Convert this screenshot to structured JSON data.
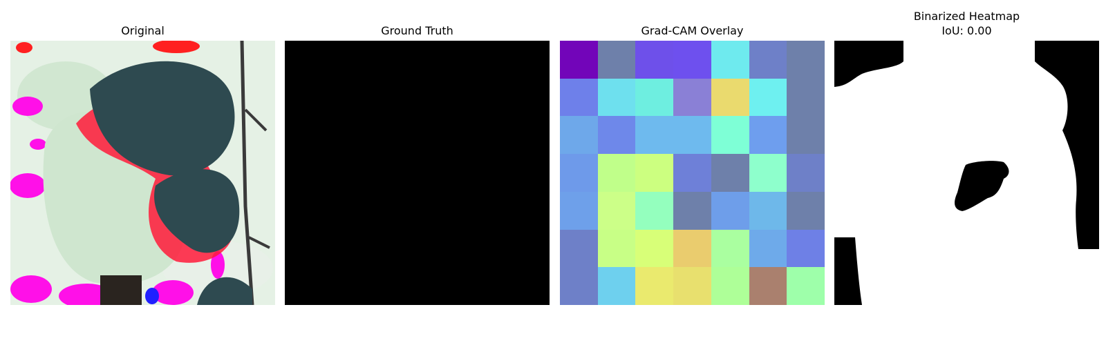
{
  "panels": {
    "original": {
      "title": "Original"
    },
    "ground_truth": {
      "title": "Ground Truth"
    },
    "gradcam": {
      "title": "Grad-CAM Overlay",
      "grid_colors": [
        [
          "#7205b9",
          "#6e80aa",
          "#6e50ea",
          "#6e50ee",
          "#6eeaee",
          "#6e80c8",
          "#6e80aa"
        ],
        [
          "#6e80ea",
          "#6ee0ee",
          "#6eeee0",
          "#8a80d6",
          "#eada6e",
          "#6ef0f0",
          "#6e80aa"
        ],
        [
          "#6ea8ea",
          "#6e88ea",
          "#6ebaee",
          "#6ebaee",
          "#7effd6",
          "#6e9eee",
          "#6e80aa"
        ],
        [
          "#6e9aea",
          "#c0ff8a",
          "#ccff80",
          "#6e80d8",
          "#6e80aa",
          "#8effcc",
          "#6e80c8"
        ],
        [
          "#6ea0ea",
          "#ccff88",
          "#94ffbe",
          "#6e80aa",
          "#6e9eea",
          "#6eb8ea",
          "#6e80aa"
        ],
        [
          "#6e80c8",
          "#c8ff86",
          "#d8ff78",
          "#eacc6e",
          "#aaffa0",
          "#6eaaea",
          "#6e80e6"
        ],
        [
          "#6e80c8",
          "#6ed0ee",
          "#eaea6e",
          "#e8e06e",
          "#aeff98",
          "#aa806e",
          "#9effaa"
        ]
      ]
    },
    "binarized": {
      "title": "Binarized Heatmap\nIoU: 0.00"
    }
  }
}
